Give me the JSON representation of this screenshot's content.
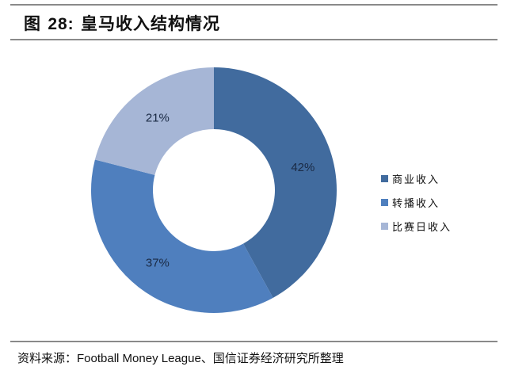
{
  "header": {
    "figure_prefix": "图",
    "figure_number": "28:",
    "title": "皇马收入结构情况"
  },
  "legend": {
    "items": [
      {
        "label": "商业收入",
        "color": "#416b9e"
      },
      {
        "label": "转播收入",
        "color": "#4f7fbe"
      },
      {
        "label": "比赛日收入",
        "color": "#a6b6d6"
      }
    ]
  },
  "slice_labels": [
    "42%",
    "37%",
    "21%"
  ],
  "footer": {
    "source_prefix": "资料来源：",
    "source_en": "Football Money League",
    "source_suffix": "、国信证券经济研究所整理"
  },
  "chart_data": {
    "type": "pie",
    "variant": "donut",
    "title": "图 28: 皇马收入结构情况",
    "categories": [
      "商业收入",
      "转播收入",
      "比赛日收入"
    ],
    "values": [
      42,
      37,
      21
    ],
    "unit": "%",
    "colors": [
      "#416b9e",
      "#4f7fbe",
      "#a6b6d6"
    ],
    "start_angle": "12 o'clock, clockwise",
    "data_labels": [
      "42%",
      "37%",
      "21%"
    ],
    "legend_position": "right",
    "source": "资料来源：Football Money League、国信证券经济研究所整理"
  }
}
